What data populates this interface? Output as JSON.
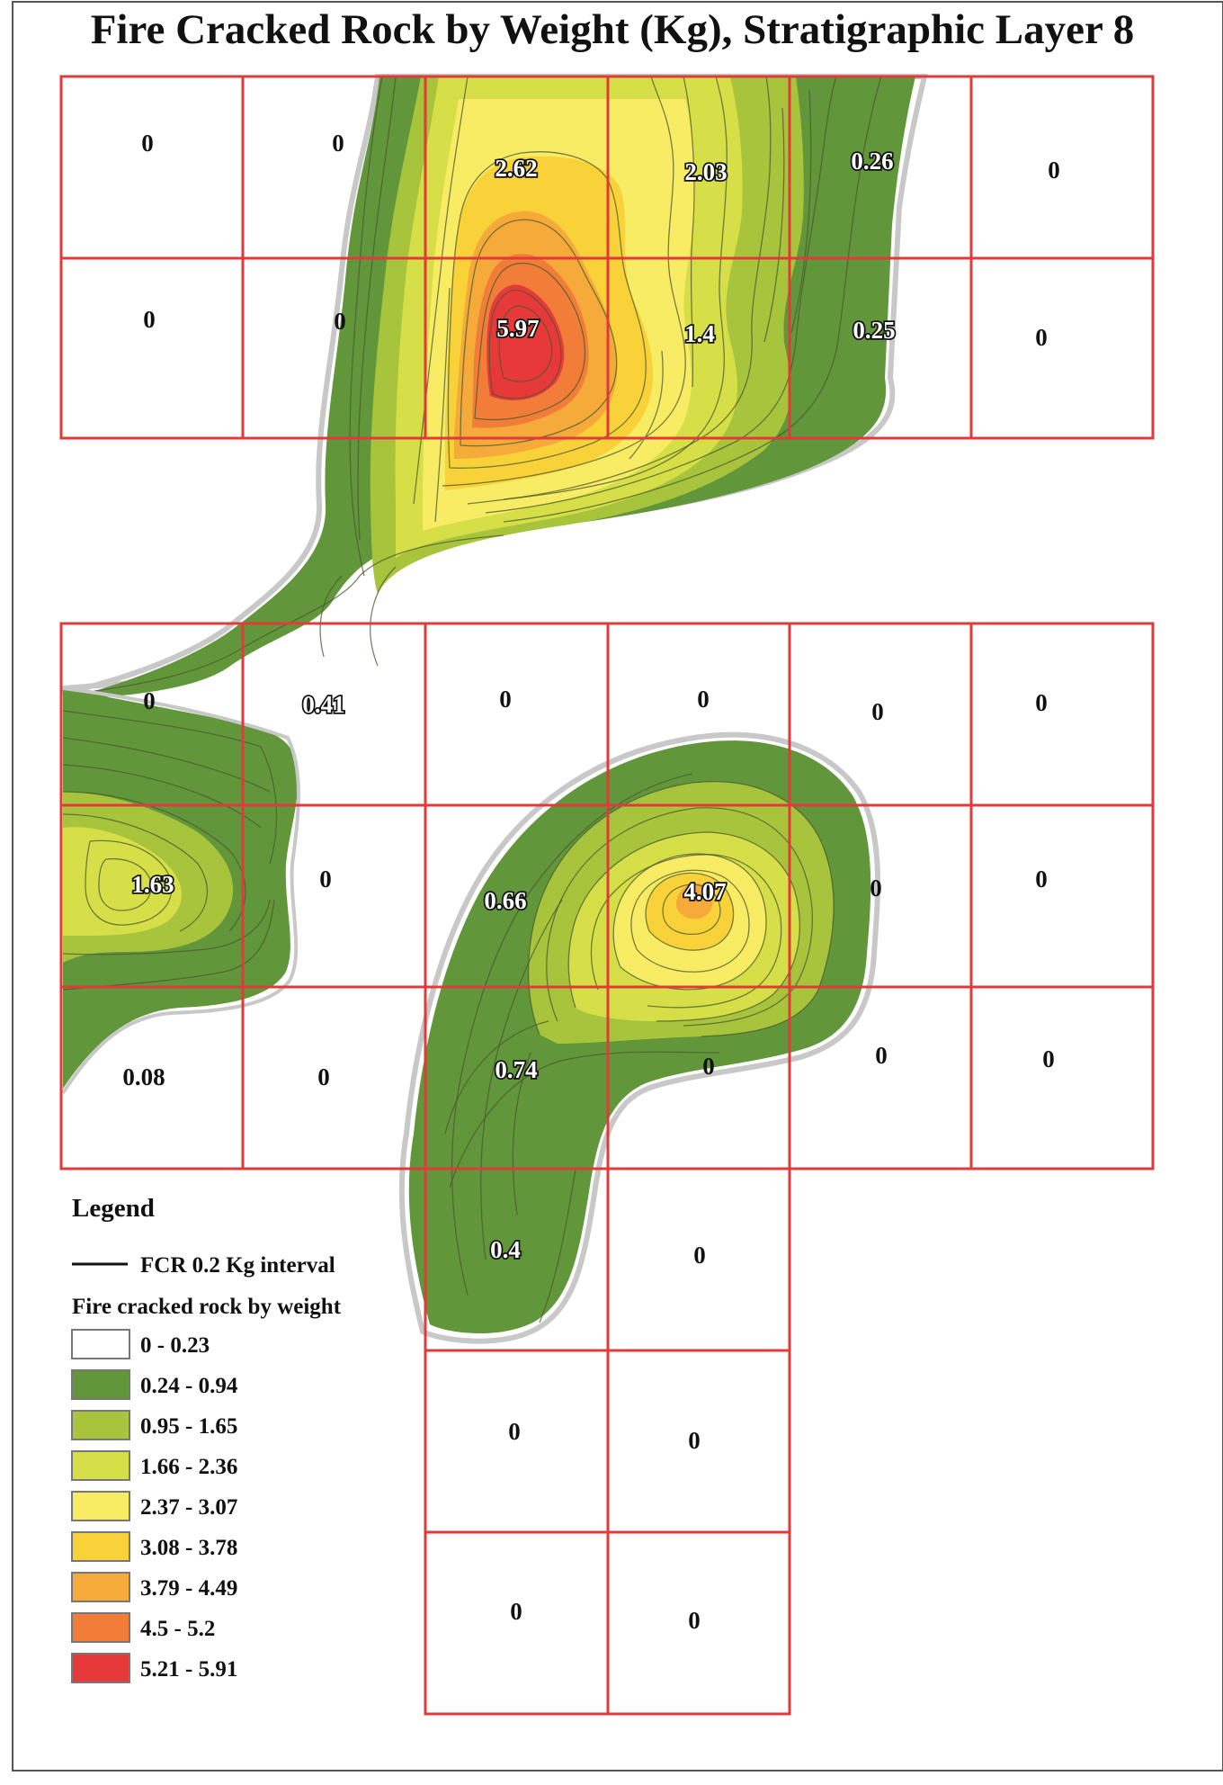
{
  "title": "Fire Cracked Rock by Weight (Kg), Stratigraphic Layer 8",
  "colors": {
    "frame": "#555555",
    "grid": "#e03a3a",
    "band_0_23": "#ffffff",
    "band_24_94": "#62963a",
    "band_95_165": "#a7c43c",
    "band_166_236": "#d6df48",
    "band_237_307": "#f8ec64",
    "band_308_378": "#f9d23a",
    "band_379_449": "#f6aa3a",
    "band_450_52": "#f17d38",
    "band_521_591": "#e7393a"
  },
  "units": [
    {
      "id": "r1c1",
      "value": "0"
    },
    {
      "id": "r1c2",
      "value": "0"
    },
    {
      "id": "r1c3",
      "value": "2.62"
    },
    {
      "id": "r1c4",
      "value": "2.03"
    },
    {
      "id": "r1c5",
      "value": "0.26"
    },
    {
      "id": "r1c6",
      "value": "0"
    },
    {
      "id": "r2c1",
      "value": "0"
    },
    {
      "id": "r2c2",
      "value": "0"
    },
    {
      "id": "r2c3",
      "value": "5.97"
    },
    {
      "id": "r2c4",
      "value": "1.4"
    },
    {
      "id": "r2c5",
      "value": "0.25"
    },
    {
      "id": "r2c6",
      "value": "0"
    },
    {
      "id": "r3c1",
      "value": "0"
    },
    {
      "id": "r3c2",
      "value": "0.41"
    },
    {
      "id": "r3c3",
      "value": "0"
    },
    {
      "id": "r3c4",
      "value": "0"
    },
    {
      "id": "r3c5",
      "value": "0"
    },
    {
      "id": "r3c6",
      "value": "0"
    },
    {
      "id": "r4c1",
      "value": "1.63"
    },
    {
      "id": "r4c2",
      "value": "0"
    },
    {
      "id": "r4c3",
      "value": "0.66"
    },
    {
      "id": "r4c4",
      "value": "4.07"
    },
    {
      "id": "r4c5",
      "value": "0"
    },
    {
      "id": "r4c6",
      "value": "0"
    },
    {
      "id": "r5c1",
      "value": "0.08"
    },
    {
      "id": "r5c2",
      "value": "0"
    },
    {
      "id": "r5c3",
      "value": "0.74"
    },
    {
      "id": "r5c4",
      "value": "0"
    },
    {
      "id": "r5c5",
      "value": "0"
    },
    {
      "id": "r5c6",
      "value": "0"
    },
    {
      "id": "r6c3",
      "value": "0.4"
    },
    {
      "id": "r6c4",
      "value": "0"
    },
    {
      "id": "r7c3",
      "value": "0"
    },
    {
      "id": "r7c4",
      "value": "0"
    },
    {
      "id": "r8c3",
      "value": "0"
    },
    {
      "id": "r8c4",
      "value": "0"
    }
  ],
  "legend": {
    "title": "Legend",
    "line_label": "FCR 0.2 Kg interval",
    "fill_title": "Fire cracked rock by weight",
    "classes": [
      {
        "label": "0 - 0.23",
        "color": "#ffffff"
      },
      {
        "label": "0.24 - 0.94",
        "color": "#62963a"
      },
      {
        "label": "0.95 - 1.65",
        "color": "#a7c43c"
      },
      {
        "label": "1.66 - 2.36",
        "color": "#d6df48"
      },
      {
        "label": "2.37 - 3.07",
        "color": "#f8ec64"
      },
      {
        "label": "3.08 - 3.78",
        "color": "#f9d23a"
      },
      {
        "label": "3.79 - 4.49",
        "color": "#f6aa3a"
      },
      {
        "label": "4.5 - 5.2",
        "color": "#f17d38"
      },
      {
        "label": "5.21 - 5.91",
        "color": "#e7393a"
      }
    ]
  }
}
